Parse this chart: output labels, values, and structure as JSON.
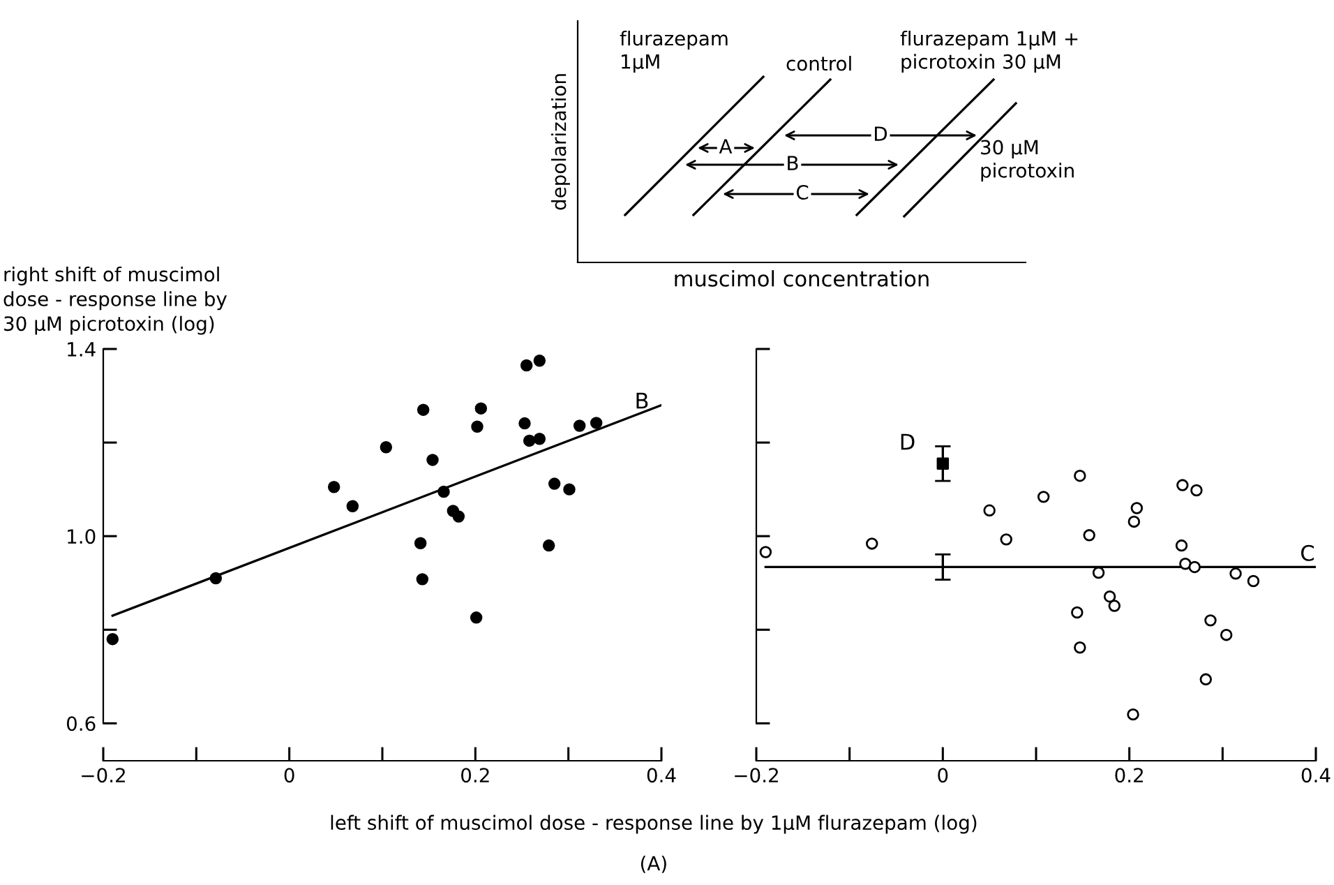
{
  "chart_data": [
    {
      "type": "other",
      "xlabel": "muscimol concentration",
      "ylabel": "depolarization",
      "annotations": [
        "flurazepam\n1μM",
        "control",
        "flurazepam 1μM +\npicrotoxin 30 μM",
        "30 μM\npicrotoxin",
        "A",
        "B",
        "C",
        "D"
      ]
    },
    {
      "type": "scatter",
      "ylabel": "right shift of muscimol\ndose - response line by\n30 μM picrotoxin (log)",
      "xlabel": "left shift of muscimol dose - response line by 1μM flurazepam (log)",
      "xlim": [
        -0.2,
        0.4
      ],
      "ylim": [
        0.52,
        1.4
      ],
      "xticks": [
        {
          "value": -0.2,
          "label": "−0.2"
        },
        {
          "value": -0.1,
          "label": null
        },
        0,
        {
          "value": 0.1,
          "label": null
        },
        0.2,
        {
          "value": 0.3,
          "label": null
        },
        0.4
      ],
      "yticks": [
        0.6,
        {
          "value": 0.8,
          "label": null
        },
        {
          "value": 1.0,
          "label": "1.0"
        },
        {
          "value": 1.2,
          "label": null
        },
        1.4
      ],
      "marker": "circle",
      "grid": false,
      "legend": false,
      "series": [
        {
          "type": "scatter",
          "color": "#000000",
          "x": [
            -0.19,
            -0.079,
            0.048,
            0.068,
            0.104,
            0.144,
            0.141,
            0.143,
            0.154,
            0.166,
            0.176,
            0.182,
            0.202,
            0.206,
            0.201,
            0.253,
            0.255,
            0.269,
            0.258,
            0.269,
            0.279,
            0.285,
            0.301,
            0.312,
            0.33
          ],
          "values": [
            0.78,
            0.91,
            1.105,
            1.064,
            1.19,
            1.27,
            0.985,
            0.908,
            1.163,
            1.095,
            1.054,
            1.042,
            1.234,
            1.273,
            0.826,
            1.241,
            1.365,
            1.375,
            1.204,
            1.208,
            0.98,
            1.112,
            1.1,
            1.236,
            1.242
          ]
        },
        {
          "type": "line",
          "color": "#000000",
          "marker": "none",
          "x": [
            -0.19,
            0.4
          ],
          "values": [
            0.83,
            1.28
          ]
        }
      ],
      "annotations": [
        "B",
        "(A)"
      ]
    },
    {
      "type": "scatter",
      "xlim": [
        -0.2,
        0.4
      ],
      "ylim": [
        0.52,
        1.4
      ],
      "tick_labels": "x",
      "xticks": [
        {
          "value": -0.2,
          "label": "−0.2"
        },
        {
          "value": -0.1,
          "label": null
        },
        0,
        {
          "value": 0.1,
          "label": null
        },
        0.2,
        {
          "value": 0.3,
          "label": null
        },
        0.4
      ],
      "yticks": [
        0.6,
        {
          "value": 0.8,
          "label": null
        },
        1.0,
        {
          "value": 1.2,
          "label": null
        },
        1.4
      ],
      "marker": "circle",
      "grid": false,
      "legend": false,
      "series": [
        {
          "type": "scatter",
          "color": "#ffffff",
          "x": [
            -0.19,
            -0.076,
            0.05,
            0.068,
            0.108,
            0.147,
            0.157,
            0.167,
            0.144,
            0.147,
            0.179,
            0.184,
            0.205,
            0.208,
            0.204,
            0.257,
            0.272,
            0.256,
            0.26,
            0.27,
            0.282,
            0.287,
            0.304,
            0.314,
            0.333
          ],
          "values": [
            0.966,
            0.984,
            1.055,
            0.993,
            1.084,
            1.129,
            1.002,
            0.922,
            0.837,
            0.762,
            0.871,
            0.851,
            1.031,
            1.06,
            0.619,
            1.109,
            1.098,
            0.98,
            0.941,
            0.934,
            0.694,
            0.82,
            0.789,
            0.92,
            0.904
          ]
        },
        {
          "type": "scatter",
          "color": "#000000",
          "marker": "square",
          "x": [
            0
          ],
          "values": [
            1.155
          ],
          "errors": [
            0.037
          ]
        },
        {
          "type": "line",
          "color": "#000000",
          "marker": "none",
          "x": [
            -0.19,
            0,
            0.4
          ],
          "values": [
            0.934,
            0.934,
            0.934
          ],
          "errors": [
            null,
            0.027,
            null
          ]
        }
      ],
      "annotations": [
        "C",
        "D"
      ]
    }
  ]
}
